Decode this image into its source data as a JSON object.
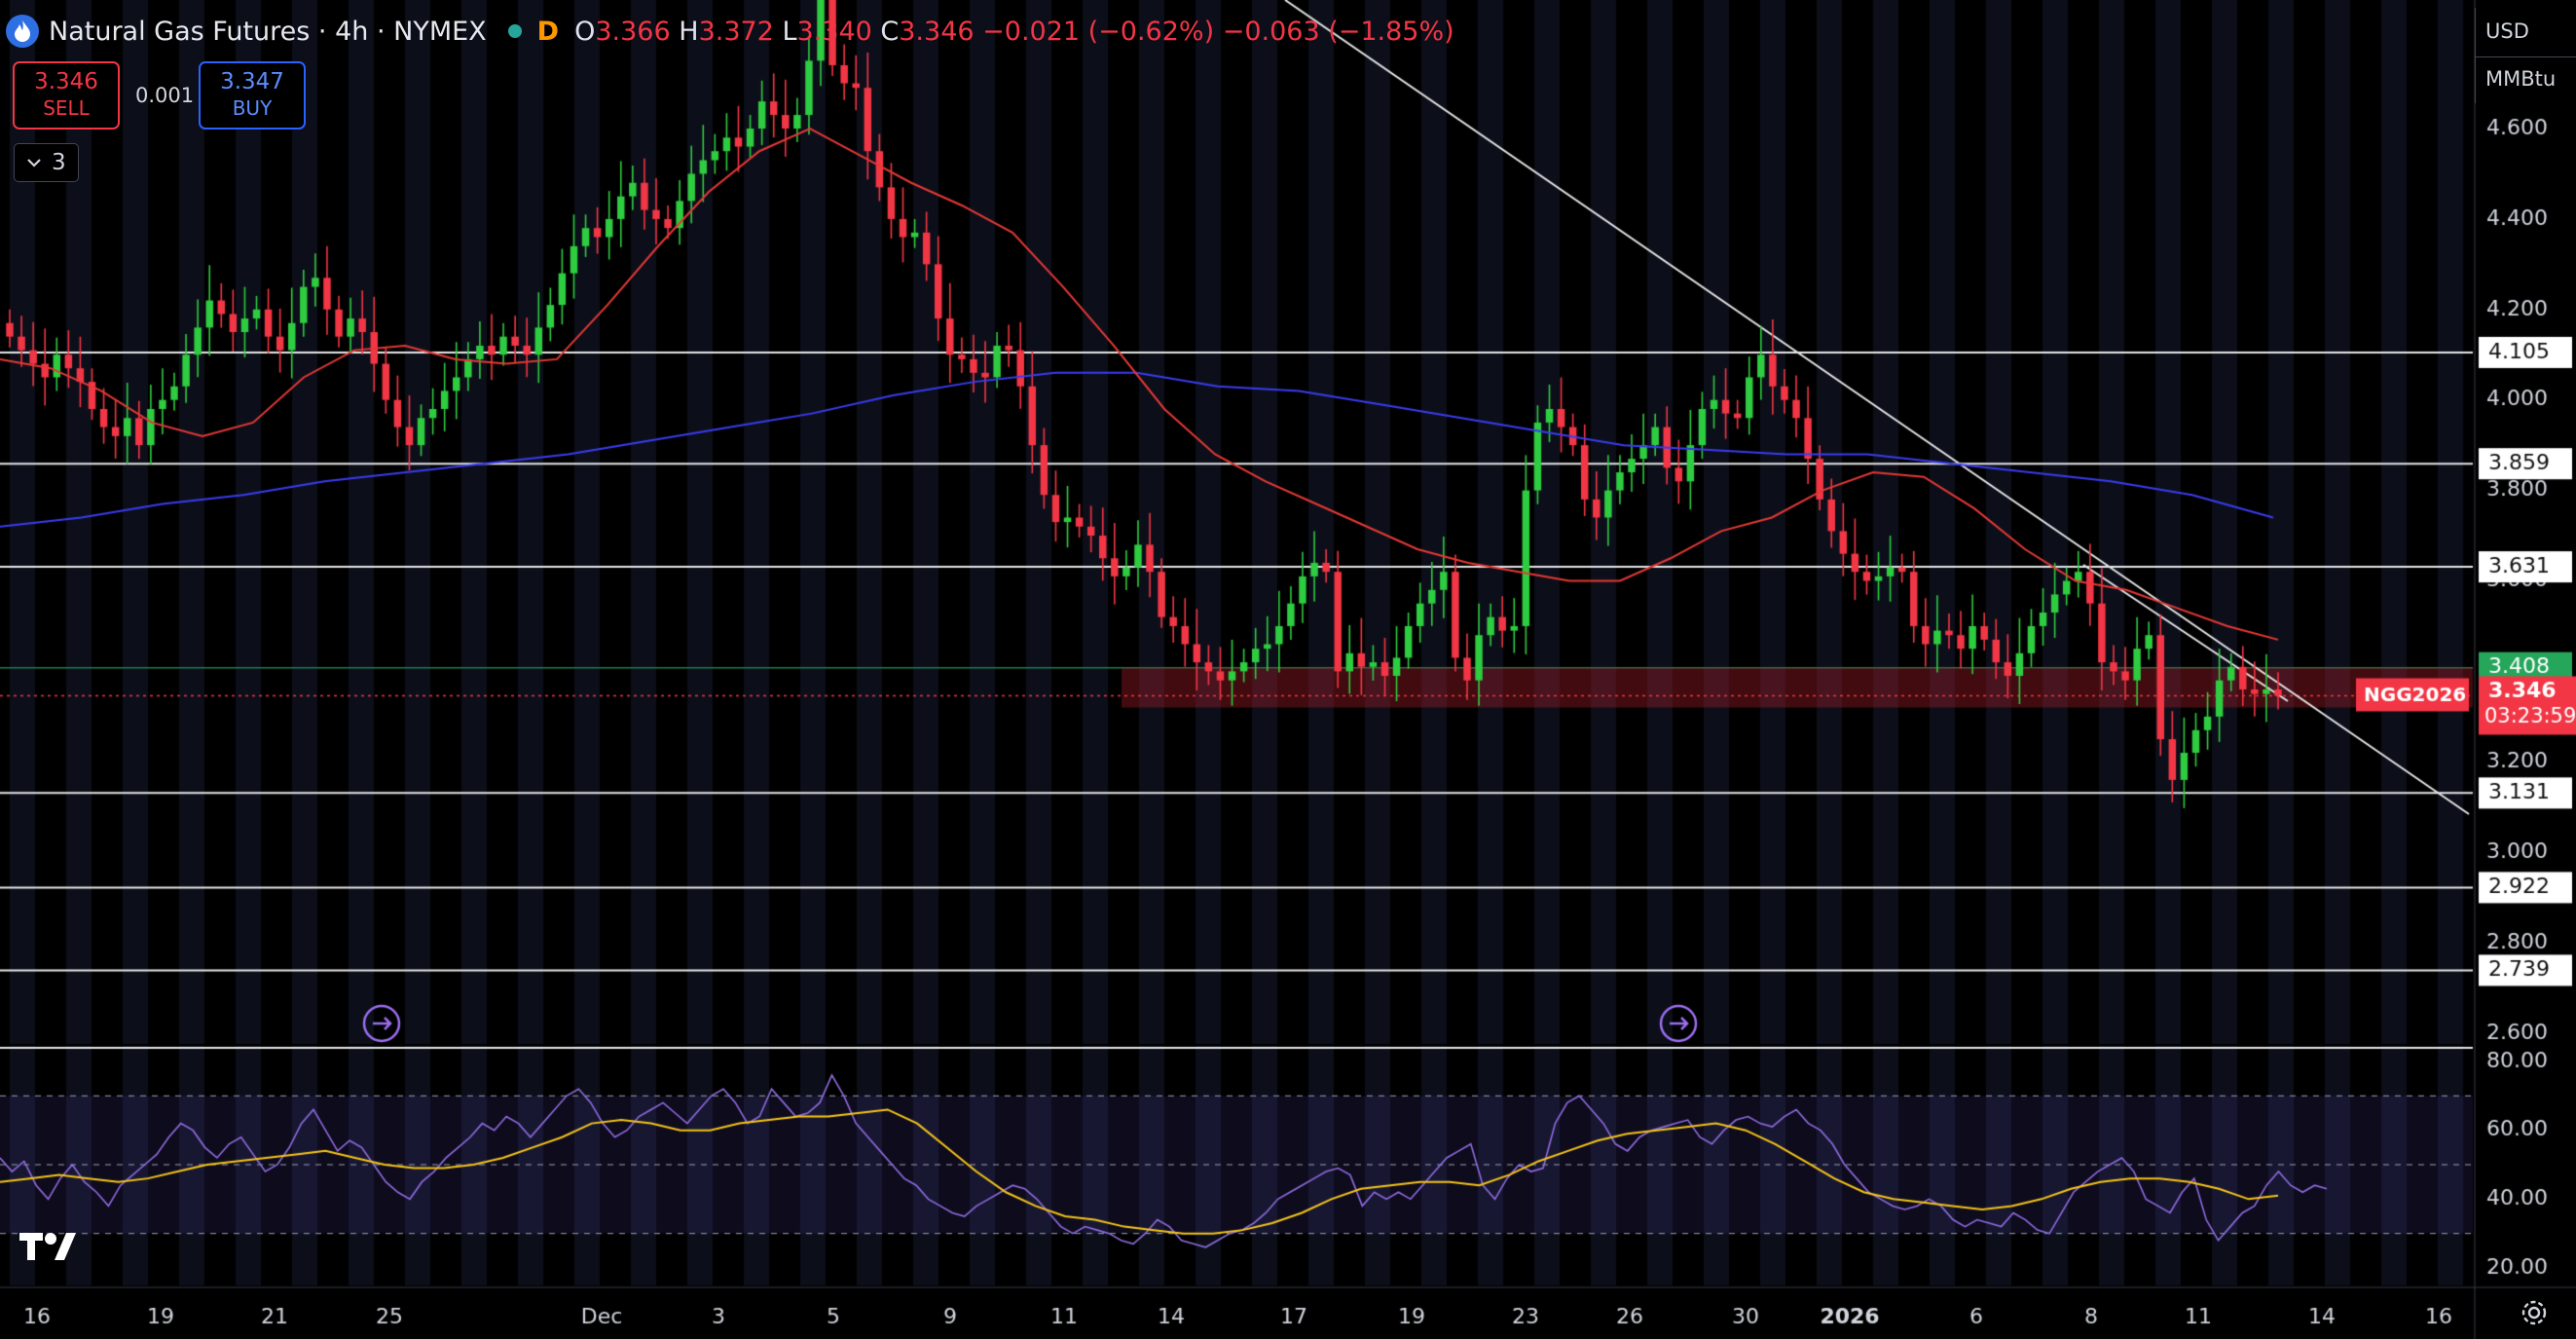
{
  "header": {
    "title": "Natural Gas Futures · 4h · NYMEX",
    "interval_badge": "D",
    "ohlc": {
      "o_label": "O",
      "o": "3.366",
      "h_label": "H",
      "h": "3.372",
      "l_label": "L",
      "l": "3.340",
      "c_label": "C",
      "c": "3.346",
      "change": "−0.021 (−0.62%)",
      "change2": "−0.063 (−1.85%)"
    }
  },
  "trade": {
    "sell_price": "3.346",
    "sell_label": "SELL",
    "spread": "0.001",
    "buy_price": "3.347",
    "buy_label": "BUY"
  },
  "indicators_toggle": {
    "count": "3"
  },
  "axis": {
    "currency": "USD",
    "unit": "MMBtu"
  },
  "price_tags": {
    "symbol": "NGG2026",
    "last": "3.346",
    "countdown": "03:23:59",
    "green_level": "3.408"
  },
  "chart_data": {
    "type": "candlestick",
    "price_axis": {
      "min": 2.6,
      "max": 4.6,
      "ticks": [
        "4.600",
        "4.400",
        "4.200",
        "4.000",
        "3.800",
        "3.600",
        "3.200",
        "3.000",
        "2.800",
        "2.600"
      ]
    },
    "rsi_axis": {
      "ticks": [
        "80.00",
        "60.00",
        "40.00",
        "20.00"
      ],
      "bands": [
        70,
        50,
        30
      ]
    },
    "x_ticks": [
      "16",
      "19",
      "21",
      "25",
      "Dec",
      "3",
      "5",
      "9",
      "11",
      "14",
      "17",
      "19",
      "23",
      "26",
      "30",
      "2026",
      "6",
      "8",
      "11",
      "14",
      "16"
    ],
    "horizontal_levels": [
      {
        "value": 4.105,
        "label": "4.105"
      },
      {
        "value": 3.859,
        "label": "3.859"
      },
      {
        "value": 3.631,
        "label": "3.631"
      },
      {
        "value": 3.131,
        "label": "3.131"
      },
      {
        "value": 2.922,
        "label": "2.922"
      },
      {
        "value": 2.739,
        "label": "2.739"
      }
    ],
    "last_price": 3.346,
    "green_line": 3.408,
    "closes": [
      4.14,
      4.11,
      4.08,
      4.05,
      4.1,
      4.07,
      4.04,
      3.98,
      3.94,
      3.92,
      3.96,
      3.9,
      3.98,
      4.0,
      4.03,
      4.1,
      4.16,
      4.22,
      4.19,
      4.15,
      4.18,
      4.2,
      4.14,
      4.11,
      4.17,
      4.25,
      4.27,
      4.2,
      4.14,
      4.18,
      4.15,
      4.08,
      4.0,
      3.94,
      3.9,
      3.96,
      3.98,
      4.02,
      4.05,
      4.09,
      4.12,
      4.1,
      4.14,
      4.12,
      4.1,
      4.16,
      4.21,
      4.28,
      4.34,
      4.38,
      4.36,
      4.4,
      4.45,
      4.48,
      4.42,
      4.4,
      4.38,
      4.44,
      4.5,
      4.53,
      4.55,
      4.58,
      4.56,
      4.6,
      4.66,
      4.63,
      4.6,
      4.63,
      4.75,
      4.93,
      4.74,
      4.7,
      4.69,
      4.55,
      4.47,
      4.4,
      4.36,
      4.37,
      4.3,
      4.18,
      4.1,
      4.09,
      4.06,
      4.05,
      4.12,
      4.11,
      4.03,
      3.9,
      3.79,
      3.73,
      3.74,
      3.72,
      3.7,
      3.65,
      3.61,
      3.63,
      3.68,
      3.62,
      3.52,
      3.5,
      3.46,
      3.42,
      3.4,
      3.38,
      3.4,
      3.42,
      3.45,
      3.46,
      3.5,
      3.55,
      3.61,
      3.64,
      3.62,
      3.4,
      3.44,
      3.41,
      3.42,
      3.39,
      3.43,
      3.5,
      3.55,
      3.58,
      3.62,
      3.43,
      3.38,
      3.48,
      3.52,
      3.49,
      3.5,
      3.8,
      3.95,
      3.98,
      3.94,
      3.9,
      3.78,
      3.74,
      3.8,
      3.84,
      3.87,
      3.9,
      3.94,
      3.85,
      3.82,
      3.9,
      3.98,
      4.0,
      3.97,
      3.96,
      4.05,
      4.1,
      4.03,
      4.0,
      3.96,
      3.87,
      3.78,
      3.71,
      3.66,
      3.62,
      3.6,
      3.61,
      3.63,
      3.62,
      3.5,
      3.46,
      3.49,
      3.48,
      3.45,
      3.5,
      3.47,
      3.42,
      3.39,
      3.44,
      3.5,
      3.53,
      3.57,
      3.6,
      3.62,
      3.55,
      3.42,
      3.4,
      3.38,
      3.45,
      3.48,
      3.25,
      3.16,
      3.22,
      3.27,
      3.3,
      3.38,
      3.41,
      3.36,
      3.35,
      3.36,
      3.346
    ],
    "ma_red": [
      4.09,
      4.07,
      4.02,
      3.95,
      3.92,
      3.95,
      4.05,
      4.11,
      4.12,
      4.09,
      4.08,
      4.09,
      4.21,
      4.34,
      4.46,
      4.55,
      4.6,
      4.54,
      4.48,
      4.43,
      4.37,
      4.25,
      4.12,
      3.98,
      3.88,
      3.82,
      3.77,
      3.72,
      3.67,
      3.64,
      3.62,
      3.6,
      3.6,
      3.65,
      3.71,
      3.74,
      3.8,
      3.84,
      3.83,
      3.76,
      3.67,
      3.6,
      3.58,
      3.54,
      3.5,
      3.47
    ],
    "ma_blue": [
      3.72,
      3.74,
      3.77,
      3.79,
      3.82,
      3.84,
      3.86,
      3.88,
      3.91,
      3.94,
      3.97,
      4.01,
      4.04,
      4.06,
      4.06,
      4.03,
      4.02,
      3.99,
      3.96,
      3.93,
      3.9,
      3.89,
      3.88,
      3.88,
      3.86,
      3.84,
      3.82,
      3.79,
      3.74
    ],
    "rsi": [
      52,
      48,
      51,
      44,
      40,
      46,
      50,
      45,
      42,
      38,
      44,
      47,
      50,
      53,
      58,
      62,
      60,
      55,
      52,
      56,
      58,
      53,
      48,
      50,
      55,
      62,
      66,
      60,
      54,
      57,
      55,
      50,
      45,
      42,
      40,
      45,
      48,
      52,
      55,
      58,
      62,
      60,
      64,
      62,
      58,
      62,
      66,
      70,
      72,
      68,
      62,
      58,
      60,
      64,
      66,
      68,
      65,
      62,
      66,
      70,
      72,
      68,
      62,
      64,
      72,
      68,
      64,
      65,
      68,
      76,
      70,
      62,
      58,
      54,
      50,
      46,
      44,
      40,
      38,
      36,
      35,
      38,
      40,
      42,
      44,
      43,
      40,
      36,
      32,
      30,
      32,
      31,
      30,
      28,
      27,
      30,
      34,
      32,
      28,
      27,
      26,
      28,
      30,
      31,
      33,
      36,
      40,
      42,
      44,
      46,
      48,
      49,
      47,
      38,
      42,
      40,
      42,
      40,
      44,
      48,
      52,
      54,
      56,
      44,
      40,
      46,
      50,
      48,
      49,
      62,
      68,
      70,
      66,
      62,
      56,
      54,
      58,
      60,
      61,
      62,
      63,
      58,
      56,
      60,
      63,
      64,
      62,
      61,
      64,
      66,
      62,
      60,
      56,
      50,
      46,
      42,
      40,
      38,
      37,
      38,
      40,
      38,
      34,
      32,
      34,
      33,
      32,
      36,
      34,
      31,
      30,
      36,
      42,
      45,
      48,
      50,
      52,
      48,
      40,
      38,
      36,
      42,
      46,
      34,
      28,
      32,
      36,
      38,
      44,
      48,
      44,
      42,
      44,
      43
    ],
    "rsi_ma": [
      45,
      46,
      47,
      46,
      45,
      46,
      48,
      50,
      51,
      52,
      53,
      54,
      52,
      50,
      49,
      49,
      50,
      52,
      55,
      58,
      62,
      63,
      62,
      60,
      60,
      62,
      63,
      64,
      64,
      65,
      66,
      62,
      55,
      48,
      42,
      38,
      35,
      34,
      32,
      31,
      30,
      30,
      31,
      33,
      36,
      40,
      43,
      44,
      45,
      45,
      44,
      47,
      51,
      54,
      57,
      59,
      60,
      61,
      62,
      60,
      56,
      51,
      46,
      42,
      40,
      39,
      38,
      37,
      38,
      40,
      43,
      45,
      46,
      46,
      45,
      43,
      40,
      41
    ]
  }
}
